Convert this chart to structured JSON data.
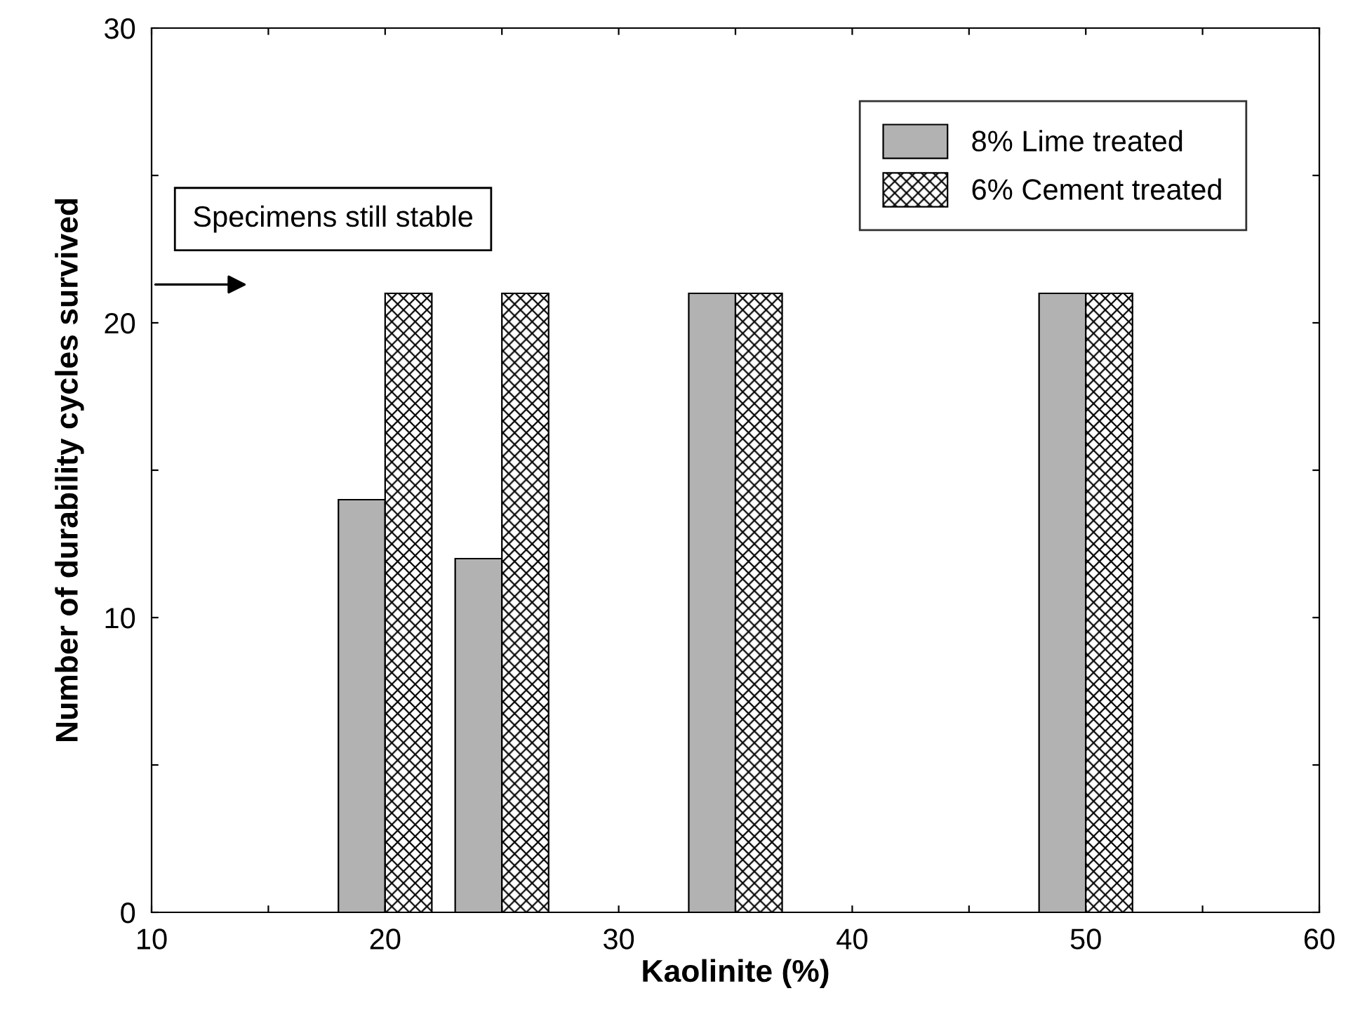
{
  "chart_data": {
    "type": "bar",
    "xlabel": "Kaolinite (%)",
    "ylabel": "Number of durability cycles survived",
    "x": [
      20,
      25,
      35,
      50
    ],
    "series": [
      {
        "name": "8% Lime treated",
        "color": "#b2b2b2",
        "values": [
          14,
          12,
          21,
          21
        ]
      },
      {
        "name": "6% Cement treated",
        "color": "#000000",
        "values": [
          21,
          21,
          21,
          21
        ]
      }
    ],
    "xlim": [
      10,
      60
    ],
    "ylim": [
      0,
      30
    ],
    "xticks": [
      10,
      {
        "value": 15,
        "label": null
      },
      20,
      {
        "value": 25,
        "label": null
      },
      30,
      {
        "value": 35,
        "label": null
      },
      40,
      {
        "value": 45,
        "label": null
      },
      50,
      {
        "value": 55,
        "label": null
      },
      60
    ],
    "yticks": [
      0,
      {
        "value": 5,
        "label": null
      },
      10,
      {
        "value": 15,
        "label": null
      },
      20,
      {
        "value": 25,
        "label": null
      },
      30
    ],
    "annotations": [
      "Specimens still stable"
    ],
    "legend": "top right",
    "grid": false
  }
}
